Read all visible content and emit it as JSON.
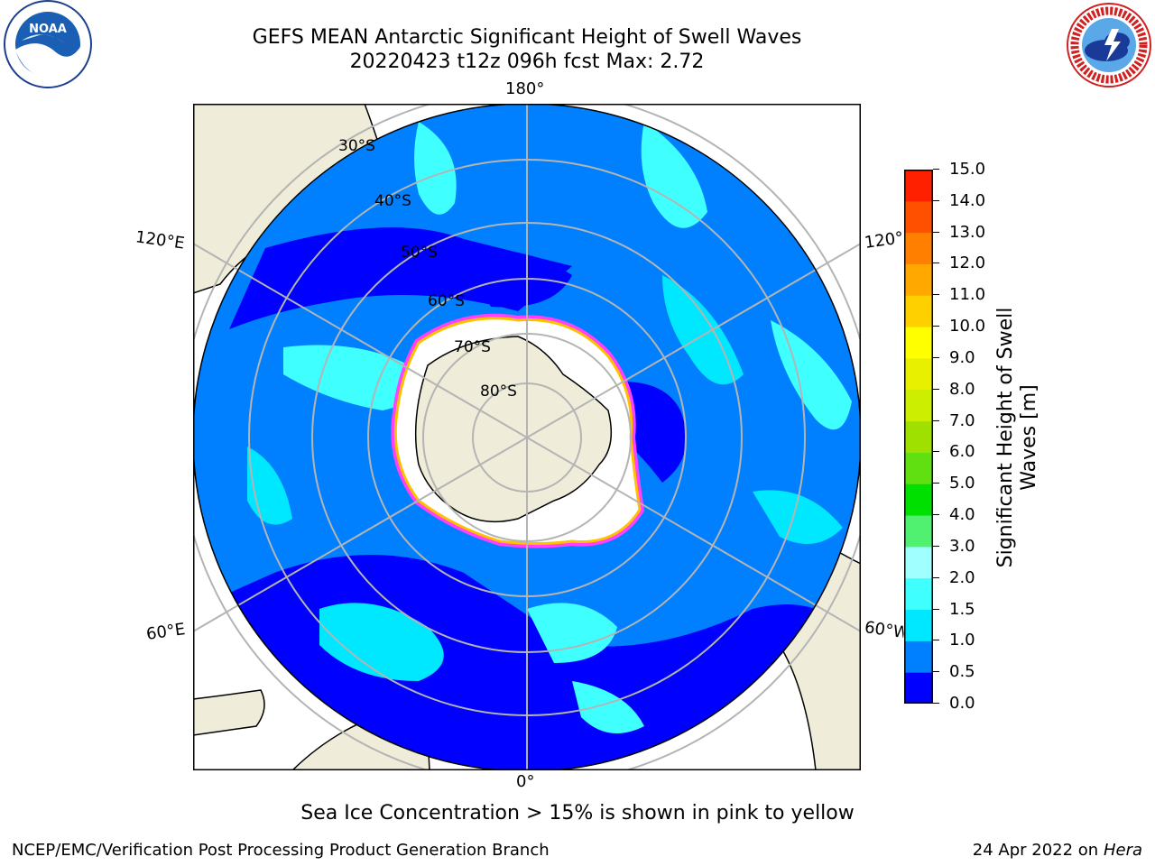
{
  "title": {
    "line1": "GEFS MEAN Antarctic Significant Height of Swell Waves",
    "line2": "20220423 t12z 096h fcst   Max: 2.72"
  },
  "logos": {
    "left": {
      "icon": "noaa-logo",
      "text": "NOAA"
    },
    "right": {
      "icon": "national-weather-service-logo"
    }
  },
  "map": {
    "projection": "south-polar-stereographic",
    "longitude_labels": {
      "top": "180°",
      "bottom": "0°",
      "upper_left": "120°E",
      "upper_right": "120°W",
      "lower_left": "60°E",
      "lower_right": "60°W"
    },
    "latitude_labels": [
      "30°S",
      "40°S",
      "50°S",
      "60°S",
      "70°S",
      "80°S"
    ]
  },
  "colorbar": {
    "label": "Significant Height of Swell Waves [m]",
    "ticks": [
      "0.0",
      "0.5",
      "1.0",
      "1.5",
      "2.0",
      "3.0",
      "4.0",
      "5.0",
      "6.0",
      "7.0",
      "8.0",
      "9.0",
      "10.0",
      "11.0",
      "12.0",
      "13.0",
      "14.0",
      "15.0"
    ],
    "colors": [
      "#0000ff",
      "#0080ff",
      "#00e8ff",
      "#40ffff",
      "#a0ffff",
      "#50f070",
      "#00e000",
      "#60e010",
      "#a0e000",
      "#ccee00",
      "#e8f000",
      "#ffff00",
      "#ffd000",
      "#ffa800",
      "#ff8000",
      "#ff5000",
      "#ff2000"
    ]
  },
  "caption": "Sea Ice Concentration > 15% is shown in pink to yellow",
  "footer": {
    "left": "NCEP/EMC/Verification Post Processing Product Generation Branch",
    "right_prefix": "24 Apr 2022 on ",
    "right_host": "Hera"
  },
  "colors": {
    "land": "#efedd9",
    "ocean_low": "#0000ff",
    "ocean_mid": "#0080ff",
    "ocean_high": "#00e8ff",
    "ocean_higher": "#40ffff",
    "ice_edge_pink": "#ff40ff",
    "ice_edge_yellow": "#ffc000"
  }
}
